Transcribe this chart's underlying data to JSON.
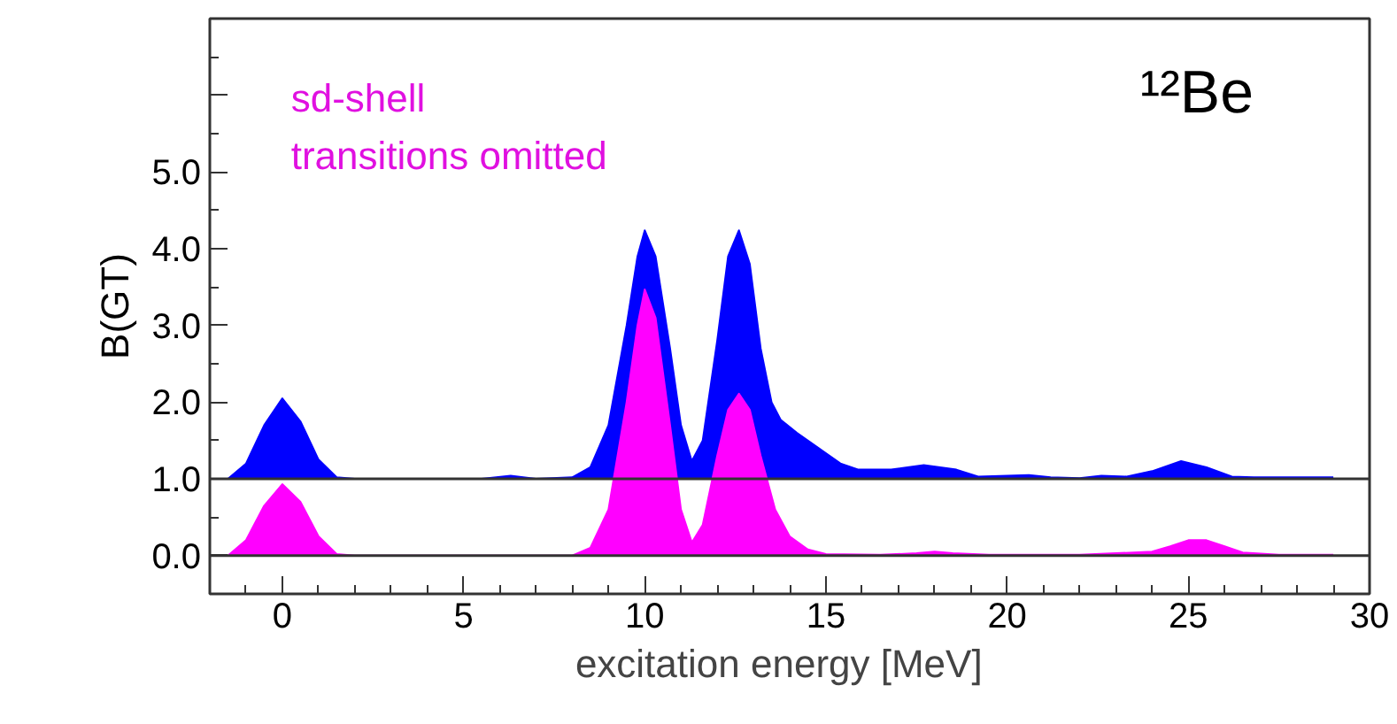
{
  "chart_data": {
    "type": "area",
    "xlabel": "excitation energy   [MeV]",
    "ylabel": "B(GT)",
    "annotations": [
      "¹²Be",
      "sd-shell",
      "transitions omitted"
    ],
    "xlim": [
      -2,
      30
    ],
    "xticks": [
      0,
      5,
      10,
      15,
      20,
      25,
      30
    ],
    "ylim": [
      -0.5,
      7.0
    ],
    "yticks": [
      {
        "value": 0,
        "label": "0.0"
      },
      {
        "value": 1,
        "label": "1.0"
      },
      {
        "value": 2,
        "label": "2.0"
      },
      {
        "value": 3,
        "label": "3.0"
      },
      {
        "value": 4,
        "label": "4.0"
      },
      {
        "value": 5,
        "label": "5.0"
      },
      {
        "value": 6,
        "label": null
      }
    ],
    "ref_lines": [
      {
        "axis": "y",
        "value": 1.0,
        "color": "#333333"
      },
      {
        "axis": "y",
        "value": 0.0,
        "color": "#333333"
      }
    ],
    "grid": false,
    "series": [
      {
        "color": "#0000ff",
        "x": [
          -2,
          -1.5,
          -1,
          -0.5,
          0,
          0.5,
          1,
          1.5,
          2,
          5.5,
          6.3,
          7,
          8,
          8.5,
          9,
          9.5,
          9.8,
          10,
          10.3,
          10.7,
          11,
          11.3,
          11.6,
          12,
          12.3,
          12.6,
          12.9,
          13.2,
          13.5,
          13.75,
          14.2,
          14.8,
          15.4,
          15.9,
          16.8,
          17.7,
          18.6,
          19.2,
          20,
          20.6,
          21.2,
          22,
          22.6,
          23.3,
          24,
          24.8,
          25.5,
          26.2,
          26.8,
          27.5,
          29
        ],
        "values": [
          1.0,
          1.0,
          1.2,
          1.7,
          2.05,
          1.75,
          1.25,
          1.02,
          1.0,
          1.0,
          1.04,
          1.0,
          1.02,
          1.15,
          1.7,
          3.0,
          3.9,
          4.24,
          3.9,
          2.7,
          1.7,
          1.23,
          1.5,
          2.8,
          3.9,
          4.24,
          3.8,
          2.7,
          2.0,
          1.77,
          1.6,
          1.4,
          1.2,
          1.12,
          1.12,
          1.18,
          1.12,
          1.03,
          1.04,
          1.05,
          1.02,
          1.01,
          1.04,
          1.03,
          1.1,
          1.23,
          1.15,
          1.03,
          1.02,
          1.02,
          1.02
        ]
      },
      {
        "color": "#ff00ff",
        "x": [
          -2,
          -1.5,
          -1,
          -0.5,
          0,
          0.5,
          1,
          1.5,
          2,
          8,
          8.5,
          9,
          9.5,
          9.8,
          10,
          10.3,
          10.7,
          11,
          11.3,
          11.6,
          12,
          12.3,
          12.6,
          12.9,
          13.2,
          13.6,
          14,
          14.5,
          15,
          16.5,
          17.5,
          18,
          18.5,
          19.5,
          22,
          24,
          24.5,
          25,
          25.5,
          26,
          26.5,
          27.5,
          29
        ],
        "values": [
          0,
          0,
          0.2,
          0.65,
          0.93,
          0.7,
          0.25,
          0.02,
          0,
          0,
          0.1,
          0.6,
          2.0,
          3.0,
          3.47,
          3.1,
          1.7,
          0.6,
          0.17,
          0.4,
          1.3,
          1.9,
          2.11,
          1.9,
          1.3,
          0.6,
          0.25,
          0.08,
          0.02,
          0.01,
          0.03,
          0.05,
          0.03,
          0.01,
          0.01,
          0.05,
          0.12,
          0.2,
          0.2,
          0.12,
          0.04,
          0.01,
          0.01
        ]
      }
    ]
  }
}
